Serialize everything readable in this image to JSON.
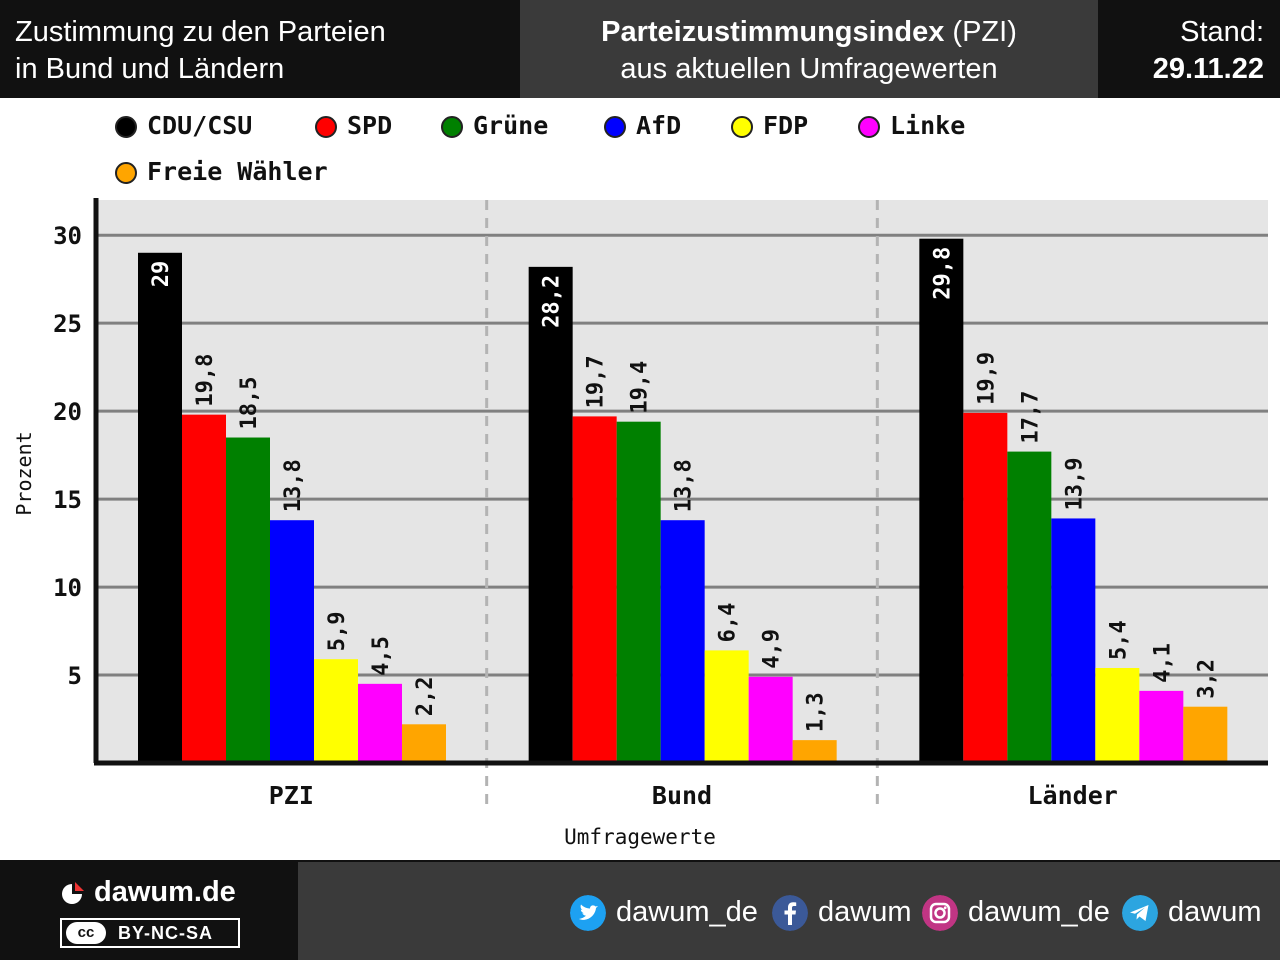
{
  "header": {
    "left_line1": "Zustimmung zu den Parteien",
    "left_line2": "in Bund und Ländern",
    "center_bold": "Parteizustimmungsindex",
    "center_rest": " (PZI)",
    "center_line2": "aus aktuellen Umfragewerten",
    "right_label": "Stand:",
    "right_date": "29.11.22"
  },
  "legend": [
    {
      "label": "CDU/CSU",
      "color": "#000000"
    },
    {
      "label": "SPD",
      "color": "#ff0000"
    },
    {
      "label": "Grüne",
      "color": "#008000"
    },
    {
      "label": "AfD",
      "color": "#0000ff"
    },
    {
      "label": "FDP",
      "color": "#ffff00"
    },
    {
      "label": "Linke",
      "color": "#ff00ff"
    },
    {
      "label": "Freie Wähler",
      "color": "#ffa500"
    }
  ],
  "chart_data": {
    "type": "bar",
    "categories": [
      "PZI",
      "Bund",
      "Länder"
    ],
    "series": [
      {
        "name": "CDU/CSU",
        "color": "#000000",
        "values": [
          29,
          28.2,
          29.8
        ],
        "labels": [
          "29",
          "28,2",
          "29,8"
        ]
      },
      {
        "name": "SPD",
        "color": "#ff0000",
        "values": [
          19.8,
          19.7,
          19.9
        ],
        "labels": [
          "19,8",
          "19,7",
          "19,9"
        ]
      },
      {
        "name": "Grüne",
        "color": "#008000",
        "values": [
          18.5,
          19.4,
          17.7
        ],
        "labels": [
          "18,5",
          "19,4",
          "17,7"
        ]
      },
      {
        "name": "AfD",
        "color": "#0000ff",
        "values": [
          13.8,
          13.8,
          13.9
        ],
        "labels": [
          "13,8",
          "13,8",
          "13,9"
        ]
      },
      {
        "name": "FDP",
        "color": "#ffff00",
        "values": [
          5.9,
          6.4,
          5.4
        ],
        "labels": [
          "5,9",
          "6,4",
          "5,4"
        ]
      },
      {
        "name": "Linke",
        "color": "#ff00ff",
        "values": [
          4.5,
          4.9,
          4.1
        ],
        "labels": [
          "4,5",
          "4,9",
          "4,1"
        ]
      },
      {
        "name": "Freie Wähler",
        "color": "#ffa500",
        "values": [
          2.2,
          1.3,
          3.2
        ],
        "labels": [
          "2,2",
          "1,3",
          "3,2"
        ]
      }
    ],
    "yticks": [
      5,
      10,
      15,
      20,
      25,
      30
    ],
    "ylim": [
      0,
      32
    ],
    "ylabel": "Prozent",
    "xlabel": "Umfragewerte",
    "grid": true,
    "legend_position": "top"
  },
  "footer": {
    "brand": "dawum.de",
    "license": "BY-NC-SA",
    "license_icon_text": "cc",
    "social": [
      {
        "network": "twitter-icon",
        "handle": "dawum_de",
        "color": "#1da1f2"
      },
      {
        "network": "facebook-icon",
        "handle": "dawum",
        "color": "#3b5998"
      },
      {
        "network": "instagram-icon",
        "handle": "dawum_de",
        "color": "#c13584"
      },
      {
        "network": "telegram-icon",
        "handle": "dawum",
        "color": "#2ca5e0"
      }
    ]
  }
}
